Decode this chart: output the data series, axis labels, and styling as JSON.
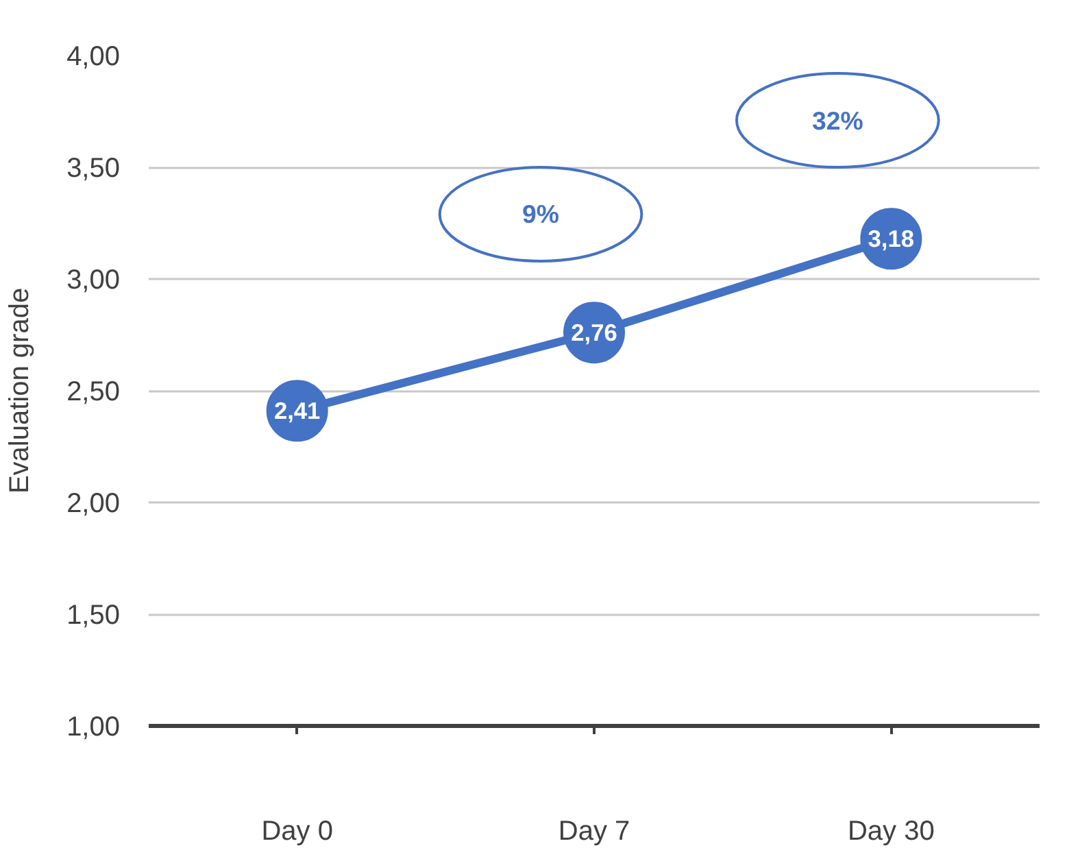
{
  "chart_data": {
    "type": "line",
    "ylabel": "Evaluation grade",
    "categories": [
      "Day 0",
      "Day 7",
      "Day 30"
    ],
    "series": [
      {
        "color": "#4472c4",
        "values": [
          2.41,
          2.76,
          3.18
        ],
        "value_labels": [
          "2,41",
          "2,76",
          "3,18"
        ]
      }
    ],
    "ylim": [
      1,
      4
    ],
    "yticks": [
      {
        "value": 1,
        "label": "1,00"
      },
      {
        "value": 1.5,
        "label": "1,50"
      },
      {
        "value": 2,
        "label": "2,00"
      },
      {
        "value": 2.5,
        "label": "2,50"
      },
      {
        "value": 3,
        "label": "3,00"
      },
      {
        "value": 3.5,
        "label": "3,50"
      },
      {
        "value": 4,
        "label": "4,00"
      }
    ],
    "grid": "y",
    "marker": "circle",
    "line_style": "solid",
    "annotations": [
      "9%",
      "32%"
    ]
  }
}
